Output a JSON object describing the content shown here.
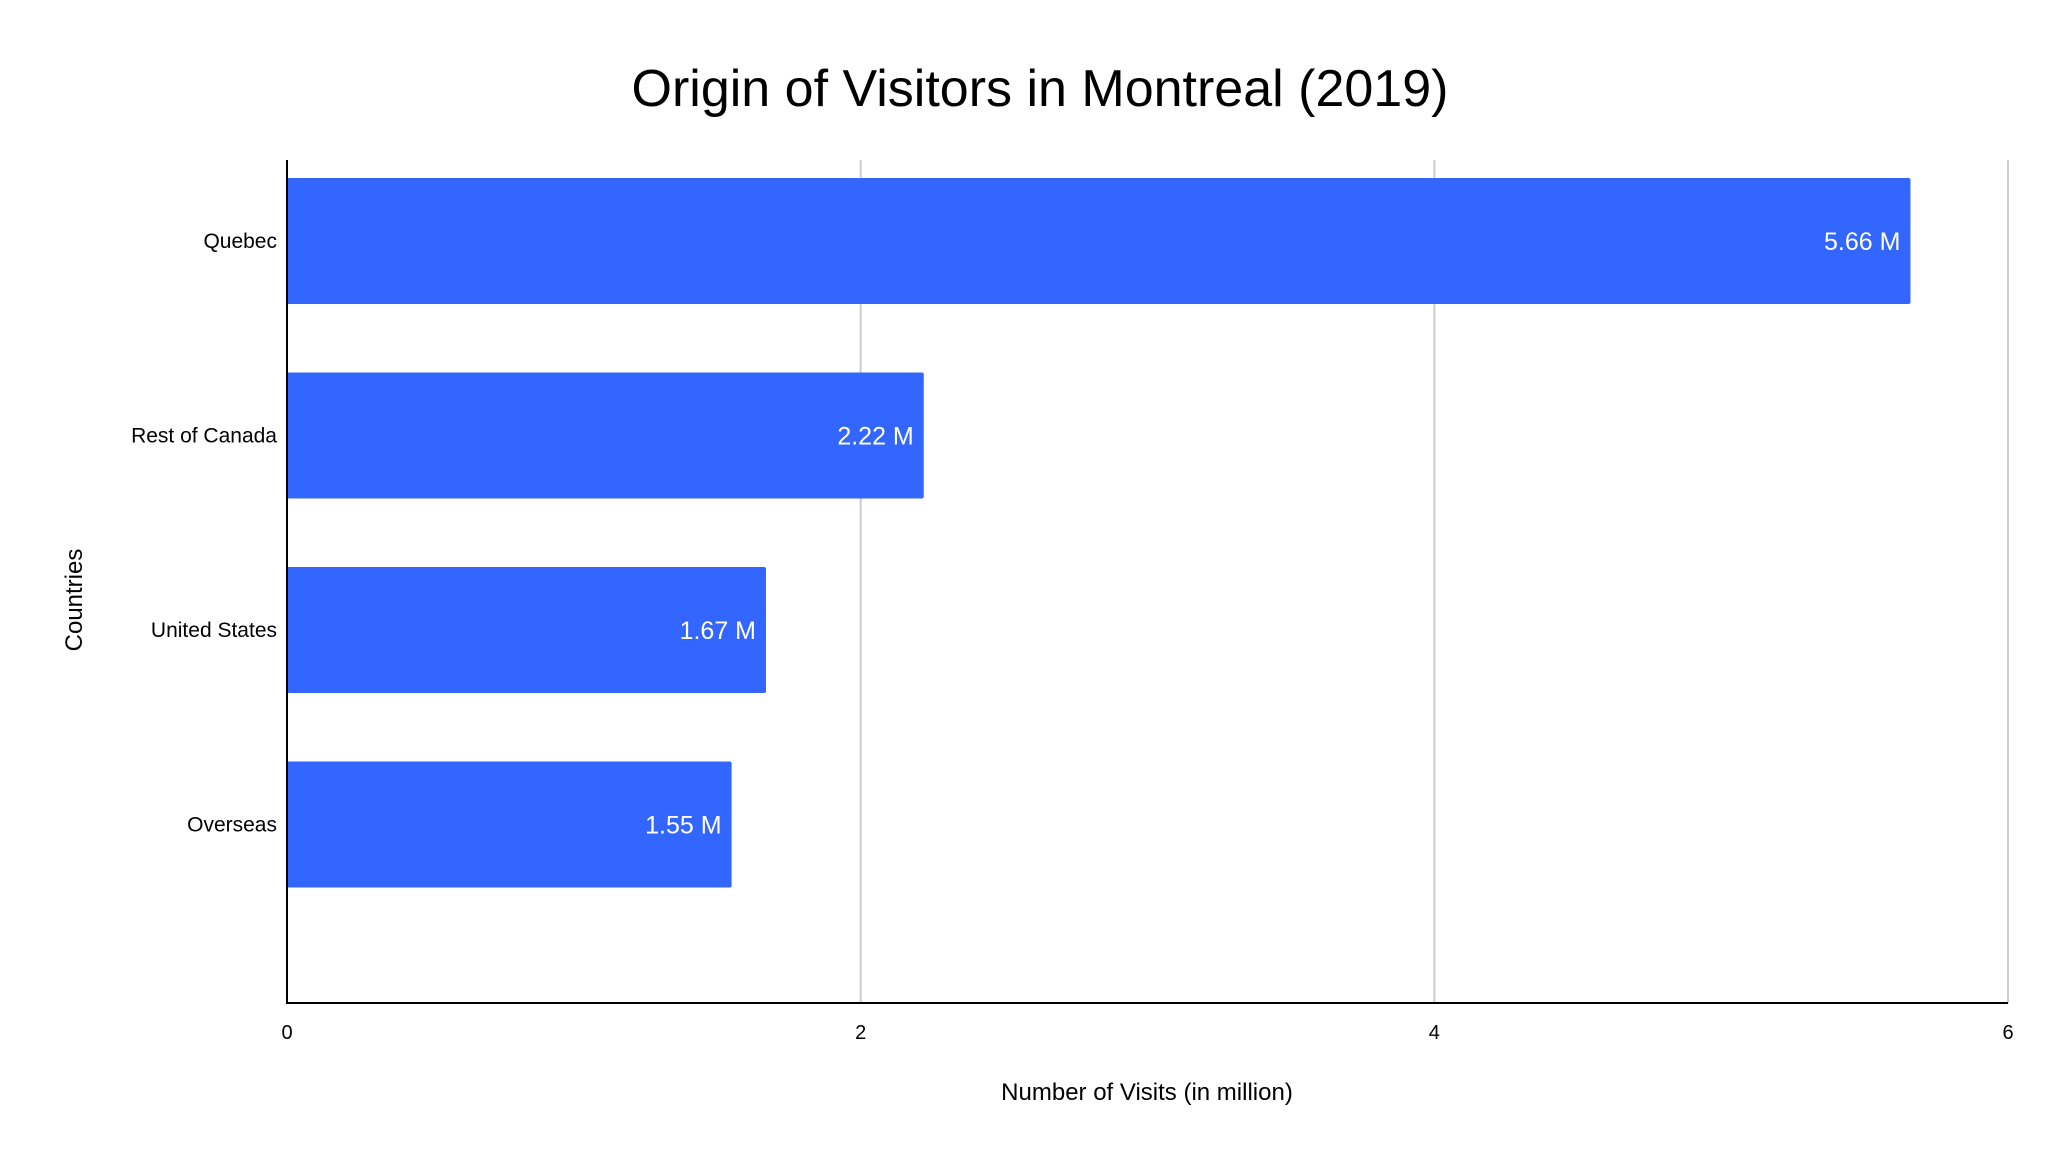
{
  "chart_data": {
    "type": "bar",
    "orientation": "horizontal",
    "title": "Origin of Visitors in Montreal (2019)",
    "xlabel": "Number of Visits (in million)",
    "ylabel": "Countries",
    "categories": [
      "Quebec",
      "Rest of Canada",
      "United States",
      "Overseas"
    ],
    "values": [
      5.66,
      2.22,
      1.67,
      1.55
    ],
    "data_labels": [
      "5.66 M",
      "2.22 M",
      "1.67 M",
      "1.55 M"
    ],
    "xlim": [
      0,
      6
    ],
    "x_ticks": [
      0,
      2,
      4,
      6
    ],
    "x_tick_labels": [
      "0",
      "2",
      "4",
      "6"
    ],
    "grid": true,
    "legend": "none",
    "bar_color": "#3366ff"
  }
}
